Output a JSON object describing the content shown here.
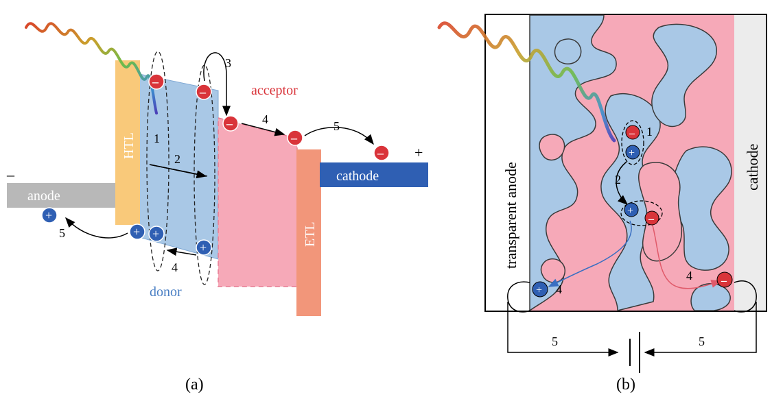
{
  "panel_a": {
    "caption": "(a)",
    "layers": {
      "anode": "anode",
      "htl": "HTL",
      "etl": "ETL",
      "cathode": "cathode"
    },
    "materials": {
      "donor": "donor",
      "acceptor": "acceptor"
    },
    "polarity": {
      "left": "–",
      "right": "+"
    },
    "steps": [
      "1",
      "2",
      "3",
      "4",
      "4",
      "5",
      "5"
    ],
    "charges": {
      "electron": "–",
      "hole": "+"
    }
  },
  "panel_b": {
    "caption": "(b)",
    "electrodes": {
      "anode": "transparent anode",
      "cathode": "cathode"
    },
    "steps": [
      "1",
      "2",
      "4",
      "4",
      "5",
      "5"
    ],
    "charges": {
      "electron": "–",
      "hole": "+"
    }
  },
  "colors": {
    "donor": "#a9c8e6",
    "acceptor": "#f6a9b8",
    "htl": "#f9c97a",
    "etl": "#f2967a",
    "cathode": "#2f5fb3",
    "anode": "#b8b8b8",
    "electron": "#d9343a",
    "hole": "#2f5fb3",
    "acceptor_label": "#d9343a",
    "donor_label": "#4a7fc4"
  }
}
